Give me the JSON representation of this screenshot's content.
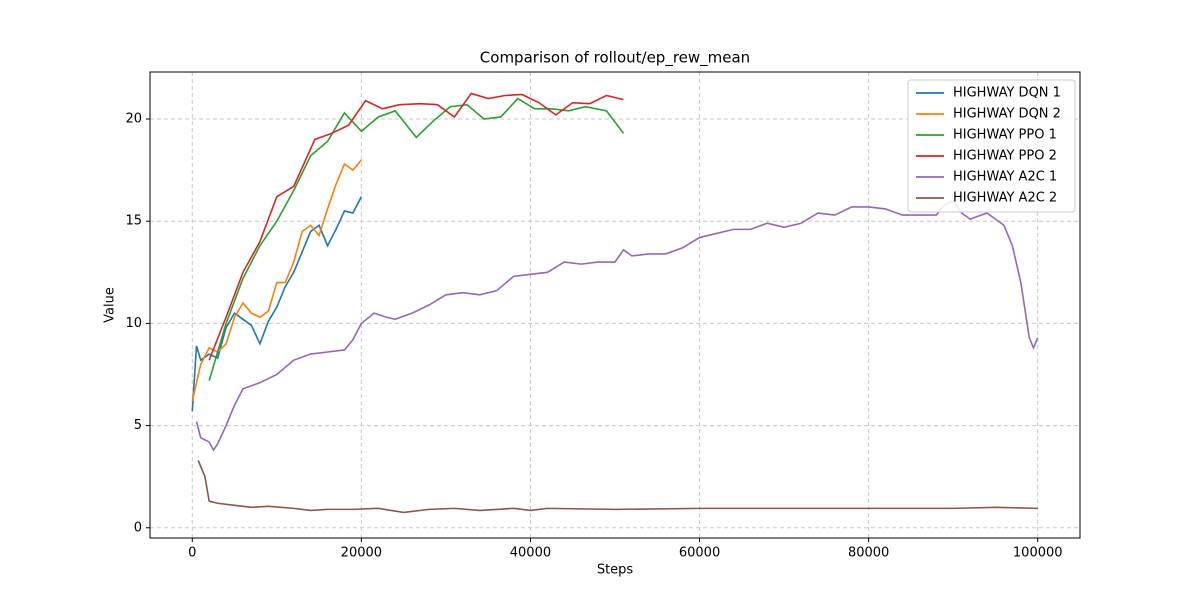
{
  "chart_data": {
    "type": "line",
    "title": "Comparison of rollout/ep_rew_mean",
    "xlabel": "Steps",
    "ylabel": "Value",
    "xlim": [
      -5000,
      105000
    ],
    "ylim": [
      -0.5,
      22.3
    ],
    "xticks": [
      0,
      20000,
      40000,
      60000,
      80000,
      100000
    ],
    "yticks": [
      0,
      5,
      10,
      15,
      20
    ],
    "grid": true,
    "legend": "upper right",
    "series": [
      {
        "name": "HIGHWAY DQN 1",
        "color": "#1f77b4",
        "x": [
          0,
          500,
          1000,
          2000,
          3000,
          4000,
          5000,
          6000,
          7000,
          8000,
          9000,
          10000,
          11000,
          12000,
          13000,
          14000,
          15000,
          16000,
          17000,
          18000,
          19000,
          20000
        ],
        "values": [
          5.7,
          8.9,
          8.2,
          8.5,
          8.3,
          9.8,
          10.5,
          10.2,
          9.9,
          9.0,
          10.1,
          10.8,
          11.8,
          12.5,
          13.5,
          14.5,
          14.8,
          13.8,
          14.6,
          15.5,
          15.4,
          16.2
        ]
      },
      {
        "name": "HIGHWAY DQN 2",
        "color": "#ff7f0e",
        "x": [
          0,
          1000,
          2000,
          3000,
          4000,
          5000,
          6000,
          7000,
          8000,
          9000,
          10000,
          11000,
          12000,
          13000,
          14000,
          15000,
          16000,
          17000,
          18000,
          19000,
          20000
        ],
        "values": [
          6.2,
          8.0,
          8.8,
          8.6,
          9.0,
          10.3,
          11.0,
          10.5,
          10.3,
          10.6,
          12.0,
          12.0,
          13.0,
          14.5,
          14.8,
          14.3,
          15.6,
          16.8,
          17.8,
          17.5,
          18.0
        ]
      },
      {
        "name": "HIGHWAY PPO 1",
        "color": "#2ca02c",
        "x": [
          2000,
          4000,
          6000,
          8000,
          10000,
          12000,
          14000,
          16000,
          18000,
          20000,
          22000,
          24000,
          26500,
          28500,
          30500,
          32500,
          34500,
          36500,
          38500,
          40500,
          42500,
          44500,
          46500,
          49000,
          51000
        ],
        "values": [
          7.2,
          10.0,
          12.2,
          13.8,
          15.0,
          16.5,
          18.2,
          18.9,
          20.3,
          19.4,
          20.1,
          20.4,
          19.1,
          19.9,
          20.6,
          20.7,
          20.0,
          20.1,
          21.0,
          20.5,
          20.5,
          20.4,
          20.6,
          20.4,
          19.3
        ]
      },
      {
        "name": "HIGHWAY PPO 2",
        "color": "#d62728",
        "x": [
          2000,
          4000,
          6000,
          8000,
          10000,
          12000,
          14500,
          16500,
          18500,
          20500,
          22500,
          24500,
          27000,
          29000,
          31000,
          33000,
          35000,
          37000,
          39000,
          41000,
          43000,
          45000,
          47000,
          49000,
          51000
        ],
        "values": [
          8.2,
          10.3,
          12.5,
          14.0,
          16.2,
          16.7,
          19.0,
          19.3,
          19.7,
          20.9,
          20.5,
          20.7,
          20.75,
          20.7,
          20.1,
          21.25,
          21.0,
          21.15,
          21.2,
          20.8,
          20.2,
          20.8,
          20.75,
          21.15,
          20.95
        ]
      },
      {
        "name": "HIGHWAY A2C 1",
        "color": "#9467bd",
        "x": [
          500,
          1000,
          2000,
          2500,
          3000,
          4000,
          5000,
          6000,
          8000,
          10000,
          12000,
          14000,
          16000,
          18000,
          19000,
          20000,
          21500,
          23000,
          24000,
          26000,
          28000,
          30000,
          32000,
          34000,
          36000,
          38000,
          40000,
          42000,
          44000,
          46000,
          48000,
          50000,
          51000,
          52000,
          54000,
          56000,
          58000,
          60000,
          62000,
          64000,
          66000,
          68000,
          70000,
          72000,
          74000,
          76000,
          78000,
          80000,
          82000,
          84000,
          86000,
          88000,
          89000,
          90000,
          91000,
          92000,
          94000,
          96000,
          97000,
          98000,
          99000,
          99500,
          100000
        ],
        "values": [
          5.2,
          4.4,
          4.2,
          3.8,
          4.1,
          5.0,
          6.0,
          6.8,
          7.1,
          7.5,
          8.2,
          8.5,
          8.6,
          8.7,
          9.2,
          10.0,
          10.5,
          10.3,
          10.2,
          10.5,
          10.9,
          11.4,
          11.5,
          11.4,
          11.6,
          12.3,
          12.4,
          12.5,
          13.0,
          12.9,
          13.0,
          13.0,
          13.6,
          13.3,
          13.4,
          13.4,
          13.7,
          14.2,
          14.4,
          14.6,
          14.6,
          14.9,
          14.7,
          14.9,
          15.4,
          15.3,
          15.7,
          15.7,
          15.6,
          15.3,
          15.3,
          15.3,
          15.8,
          16.0,
          15.4,
          15.1,
          15.4,
          14.8,
          13.8,
          12.0,
          9.3,
          8.8,
          9.3
        ]
      },
      {
        "name": "HIGHWAY A2C 2",
        "color": "#8c564b",
        "x": [
          700,
          1500,
          2000,
          3000,
          5000,
          7000,
          9000,
          12000,
          14000,
          16000,
          19000,
          22000,
          25000,
          28000,
          31000,
          34000,
          38000,
          40000,
          42000,
          50000,
          60000,
          70000,
          80000,
          90000,
          95000,
          100000
        ],
        "values": [
          3.3,
          2.5,
          1.3,
          1.2,
          1.1,
          1.0,
          1.05,
          0.95,
          0.85,
          0.9,
          0.9,
          0.95,
          0.75,
          0.9,
          0.95,
          0.85,
          0.95,
          0.85,
          0.95,
          0.9,
          0.95,
          0.95,
          0.95,
          0.95,
          1.0,
          0.95
        ]
      }
    ]
  }
}
